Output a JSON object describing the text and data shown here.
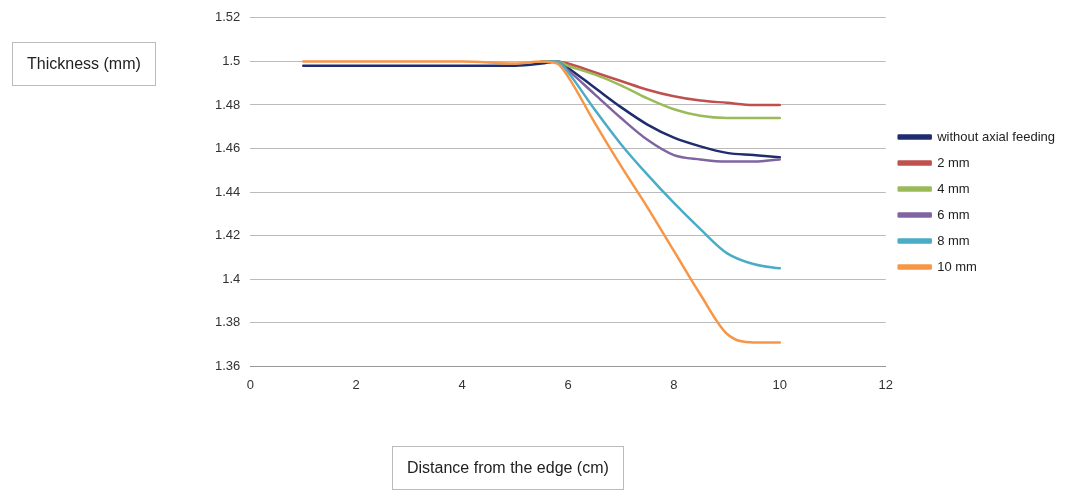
{
  "chart_data": {
    "type": "line",
    "xlabel": "Distance from the edge (cm)",
    "ylabel": "Thickness (mm)",
    "x": [
      1,
      2,
      3,
      4,
      5,
      5.5,
      5.8,
      6,
      6.5,
      7,
      7.5,
      8,
      8.5,
      9,
      9.5,
      10
    ],
    "xlim": [
      0,
      12
    ],
    "xticks": [
      0,
      2,
      4,
      6,
      8,
      10,
      12
    ],
    "ylim": [
      1.36,
      1.52
    ],
    "yticks": [
      1.36,
      1.38,
      1.4,
      1.42,
      1.44,
      1.46,
      1.48,
      1.5,
      1.52
    ],
    "grid": "y",
    "legend": "right",
    "marker": "none",
    "line_style": "solid",
    "series": [
      {
        "name": "without axial feeding",
        "color": "#1f2d6e",
        "values": [
          1.498,
          1.498,
          1.498,
          1.498,
          1.498,
          1.499,
          1.5,
          1.497,
          1.488,
          1.479,
          1.471,
          1.465,
          1.461,
          1.458,
          1.457,
          1.456
        ]
      },
      {
        "name": "2 mm",
        "color": "#c0504d",
        "values": [
          null,
          null,
          null,
          null,
          null,
          1.5,
          1.5,
          1.499,
          1.495,
          1.491,
          1.487,
          1.484,
          1.482,
          1.481,
          1.48,
          1.48
        ]
      },
      {
        "name": "4 mm",
        "color": "#9bbb59",
        "values": [
          null,
          null,
          null,
          null,
          null,
          1.5,
          1.5,
          1.498,
          1.494,
          1.489,
          1.483,
          1.478,
          1.475,
          1.474,
          1.474,
          1.474
        ]
      },
      {
        "name": "6 mm",
        "color": "#8064a2",
        "values": [
          null,
          null,
          null,
          null,
          null,
          1.5,
          1.5,
          1.496,
          1.485,
          1.474,
          1.464,
          1.457,
          1.455,
          1.454,
          1.454,
          1.455
        ]
      },
      {
        "name": "8 mm",
        "color": "#4bacc6",
        "values": [
          null,
          null,
          null,
          null,
          null,
          1.5,
          1.5,
          1.495,
          1.478,
          1.462,
          1.448,
          1.435,
          1.423,
          1.412,
          1.407,
          1.405
        ]
      },
      {
        "name": "10 mm",
        "color": "#f79646",
        "values": [
          1.5,
          1.5,
          1.5,
          1.5,
          1.499,
          1.5,
          1.499,
          1.493,
          1.472,
          1.452,
          1.433,
          1.413,
          1.393,
          1.375,
          1.371,
          1.371
        ]
      }
    ]
  }
}
